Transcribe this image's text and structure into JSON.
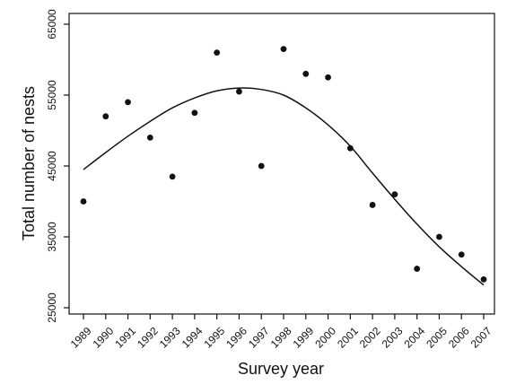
{
  "chart_data": {
    "type": "scatter",
    "title": "",
    "xlabel": "Survey year",
    "ylabel": "Total number of nests",
    "xlim": [
      1989,
      2007
    ],
    "ylim": [
      25000,
      65000
    ],
    "x_ticks": [
      "1989",
      "1990",
      "1991",
      "1992",
      "1993",
      "1994",
      "1995",
      "1996",
      "1997",
      "1998",
      "1999",
      "2000",
      "2001",
      "2002",
      "2003",
      "2004",
      "2005",
      "2006",
      "2007"
    ],
    "y_ticks": [
      "25000",
      "35000",
      "45000",
      "55000",
      "65000"
    ],
    "grid": false,
    "legend": "none",
    "colors": {
      "points": "#111111",
      "line": "#111111",
      "axis": "#111111"
    },
    "series": [
      {
        "type": "scatter",
        "x": [
          1989,
          1990,
          1991,
          1992,
          1993,
          1994,
          1995,
          1996,
          1997,
          1998,
          1999,
          2000,
          2001,
          2002,
          2003,
          2004,
          2005,
          2006,
          2007
        ],
        "y": [
          40000,
          52000,
          54000,
          49000,
          43500,
          52500,
          61000,
          55500,
          45000,
          61500,
          58000,
          57500,
          47500,
          39500,
          41000,
          30500,
          35000,
          32500,
          29000
        ]
      },
      {
        "type": "line",
        "x": [
          1989,
          1990,
          1991,
          1992,
          1993,
          1994,
          1995,
          1996,
          1997,
          1998,
          1999,
          2000,
          2001,
          2002,
          2003,
          2004,
          2005,
          2006,
          2007
        ],
        "y": [
          44500,
          46900,
          49200,
          51300,
          53200,
          54600,
          55600,
          56000,
          55800,
          55000,
          53200,
          50800,
          47800,
          44000,
          40300,
          36800,
          33600,
          30800,
          28200
        ]
      }
    ]
  }
}
